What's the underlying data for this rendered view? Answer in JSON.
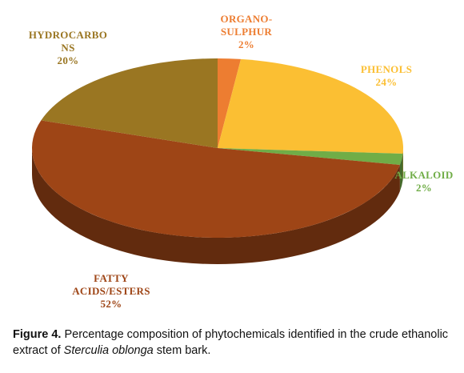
{
  "chart_data": {
    "type": "pie",
    "style": "3d",
    "slices": [
      {
        "label_lines": [
          "ORGANO-",
          "SULPHUR"
        ],
        "value_text": "2%",
        "value": 2,
        "color": "#ED7D31",
        "label_color": "#ED7D31"
      },
      {
        "label_lines": [
          "PHENOLS"
        ],
        "value_text": "24%",
        "value": 24,
        "color": "#FBBF33",
        "label_color": "#FBBF33"
      },
      {
        "label_lines": [
          "ALKALOID"
        ],
        "value_text": "2%",
        "value": 2,
        "color": "#70AD47",
        "label_color": "#70AD47"
      },
      {
        "label_lines": [
          "FATTY",
          "ACIDS/ESTERS"
        ],
        "value_text": "52%",
        "value": 52,
        "color": "#9E4516",
        "label_color": "#9E4516"
      },
      {
        "label_lines": [
          "HYDROCARBO",
          "NS"
        ],
        "value_text": "20%",
        "value": 20,
        "color": "#9A7622",
        "label_color": "#9A7622"
      }
    ]
  },
  "caption": {
    "figure_label": "Figure 4.",
    "text_before": " Percentage composition of phytochemicals identified in the crude ethanolic extract of ",
    "species": "Sterculia oblonga",
    "text_after": " stem bark."
  }
}
